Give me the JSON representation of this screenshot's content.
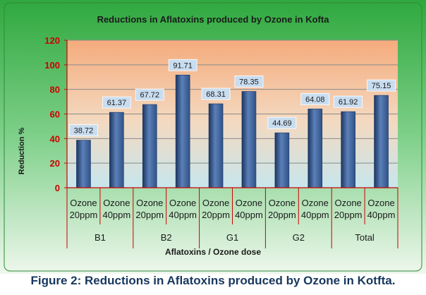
{
  "caption": "Figure 2: Reductions in Aflatoxins produced by Ozone in Kotfta.",
  "chart_data": {
    "type": "bar",
    "title": "Reductions in Aflatoxins produced by Ozone in Kofta",
    "xlabel": "Aflatoxins / Ozone dose",
    "ylabel": "Reduction %",
    "ylim": [
      0,
      120
    ],
    "yticks": [
      0,
      20,
      40,
      60,
      80,
      100,
      120
    ],
    "grid": true,
    "legend": "none",
    "groups": [
      "B1",
      "B2",
      "G1",
      "G2",
      "Total"
    ],
    "categories": [
      "Ozone 20ppm",
      "Ozone 40ppm",
      "Ozone 20ppm",
      "Ozone 40ppm",
      "Ozone 20ppm",
      "Ozone 40ppm",
      "Ozone 20ppm",
      "Ozone 40ppm",
      "Ozone 20ppm",
      "Ozone 40ppm"
    ],
    "category_lines": [
      [
        "Ozone",
        "20ppm"
      ],
      [
        "Ozone",
        "40ppm"
      ],
      [
        "Ozone",
        "20ppm"
      ],
      [
        "Ozone",
        "40ppm"
      ],
      [
        "Ozone",
        "20ppm"
      ],
      [
        "Ozone",
        "40ppm"
      ],
      [
        "Ozone",
        "20ppm"
      ],
      [
        "Ozone",
        "40ppm"
      ],
      [
        "Ozone",
        "20ppm"
      ],
      [
        "Ozone",
        "40ppm"
      ]
    ],
    "values": [
      38.72,
      61.37,
      67.72,
      91.71,
      68.31,
      78.35,
      44.69,
      64.08,
      61.92,
      75.15
    ],
    "data_labels": [
      "38.72",
      "61.37",
      "67.72",
      "91.71",
      "68.31",
      "78.35",
      "44.69",
      "64.08",
      "61.92",
      "75.15"
    ],
    "colors": {
      "bar": "#2f5287",
      "bar_light": "#5b80b8",
      "bar_dark": "#1b3560",
      "frame_green": "#3cb54a",
      "plot_top": "#f5ab7c",
      "plot_bottom": "#c7e6ed",
      "axis_red": "#cc0000",
      "gridline": "#8a8a8a",
      "label_box": "#c9ddf0",
      "title": "#1a1a1a",
      "caption": "#17375e"
    }
  }
}
